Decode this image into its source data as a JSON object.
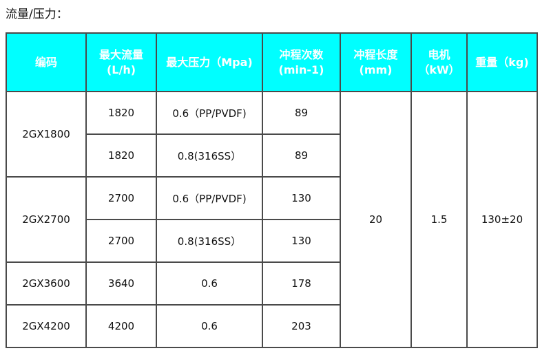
{
  "title": "流量/压力：",
  "colors": {
    "header_bg": "#00ffff",
    "header_text": "#ffffff",
    "border": "#4a4a4a"
  },
  "headers": [
    {
      "line1": "编码",
      "line2": ""
    },
    {
      "line1": "最大流量",
      "line2": "(L/h)"
    },
    {
      "line1": "最大压力（Mpa)",
      "line2": ""
    },
    {
      "line1": "冲程次数",
      "line2": "(min-1)"
    },
    {
      "line1": "冲程长度",
      "line2": "(mm)"
    },
    {
      "line1": "电机",
      "line2": "（kW）"
    },
    {
      "line1": "重量（kg)",
      "line2": ""
    }
  ],
  "models": [
    "2GX1800",
    "2GX2700",
    "2GX3600",
    "2GX4200"
  ],
  "rows": [
    {
      "flow": "1820",
      "pressure": "0.6（PP/PVDF)",
      "strokes": "89"
    },
    {
      "flow": "1820",
      "pressure": "0.8(316SS）",
      "strokes": "89"
    },
    {
      "flow": "2700",
      "pressure": "0.6（PP/PVDF)",
      "strokes": "130"
    },
    {
      "flow": "2700",
      "pressure": "0.8(316SS）",
      "strokes": "130"
    },
    {
      "flow": "3640",
      "pressure": "0.6",
      "strokes": "178"
    },
    {
      "flow": "4200",
      "pressure": "0.6",
      "strokes": "203"
    }
  ],
  "shared": {
    "stroke_length": "20",
    "motor": "1.5",
    "weight": "130±20"
  }
}
